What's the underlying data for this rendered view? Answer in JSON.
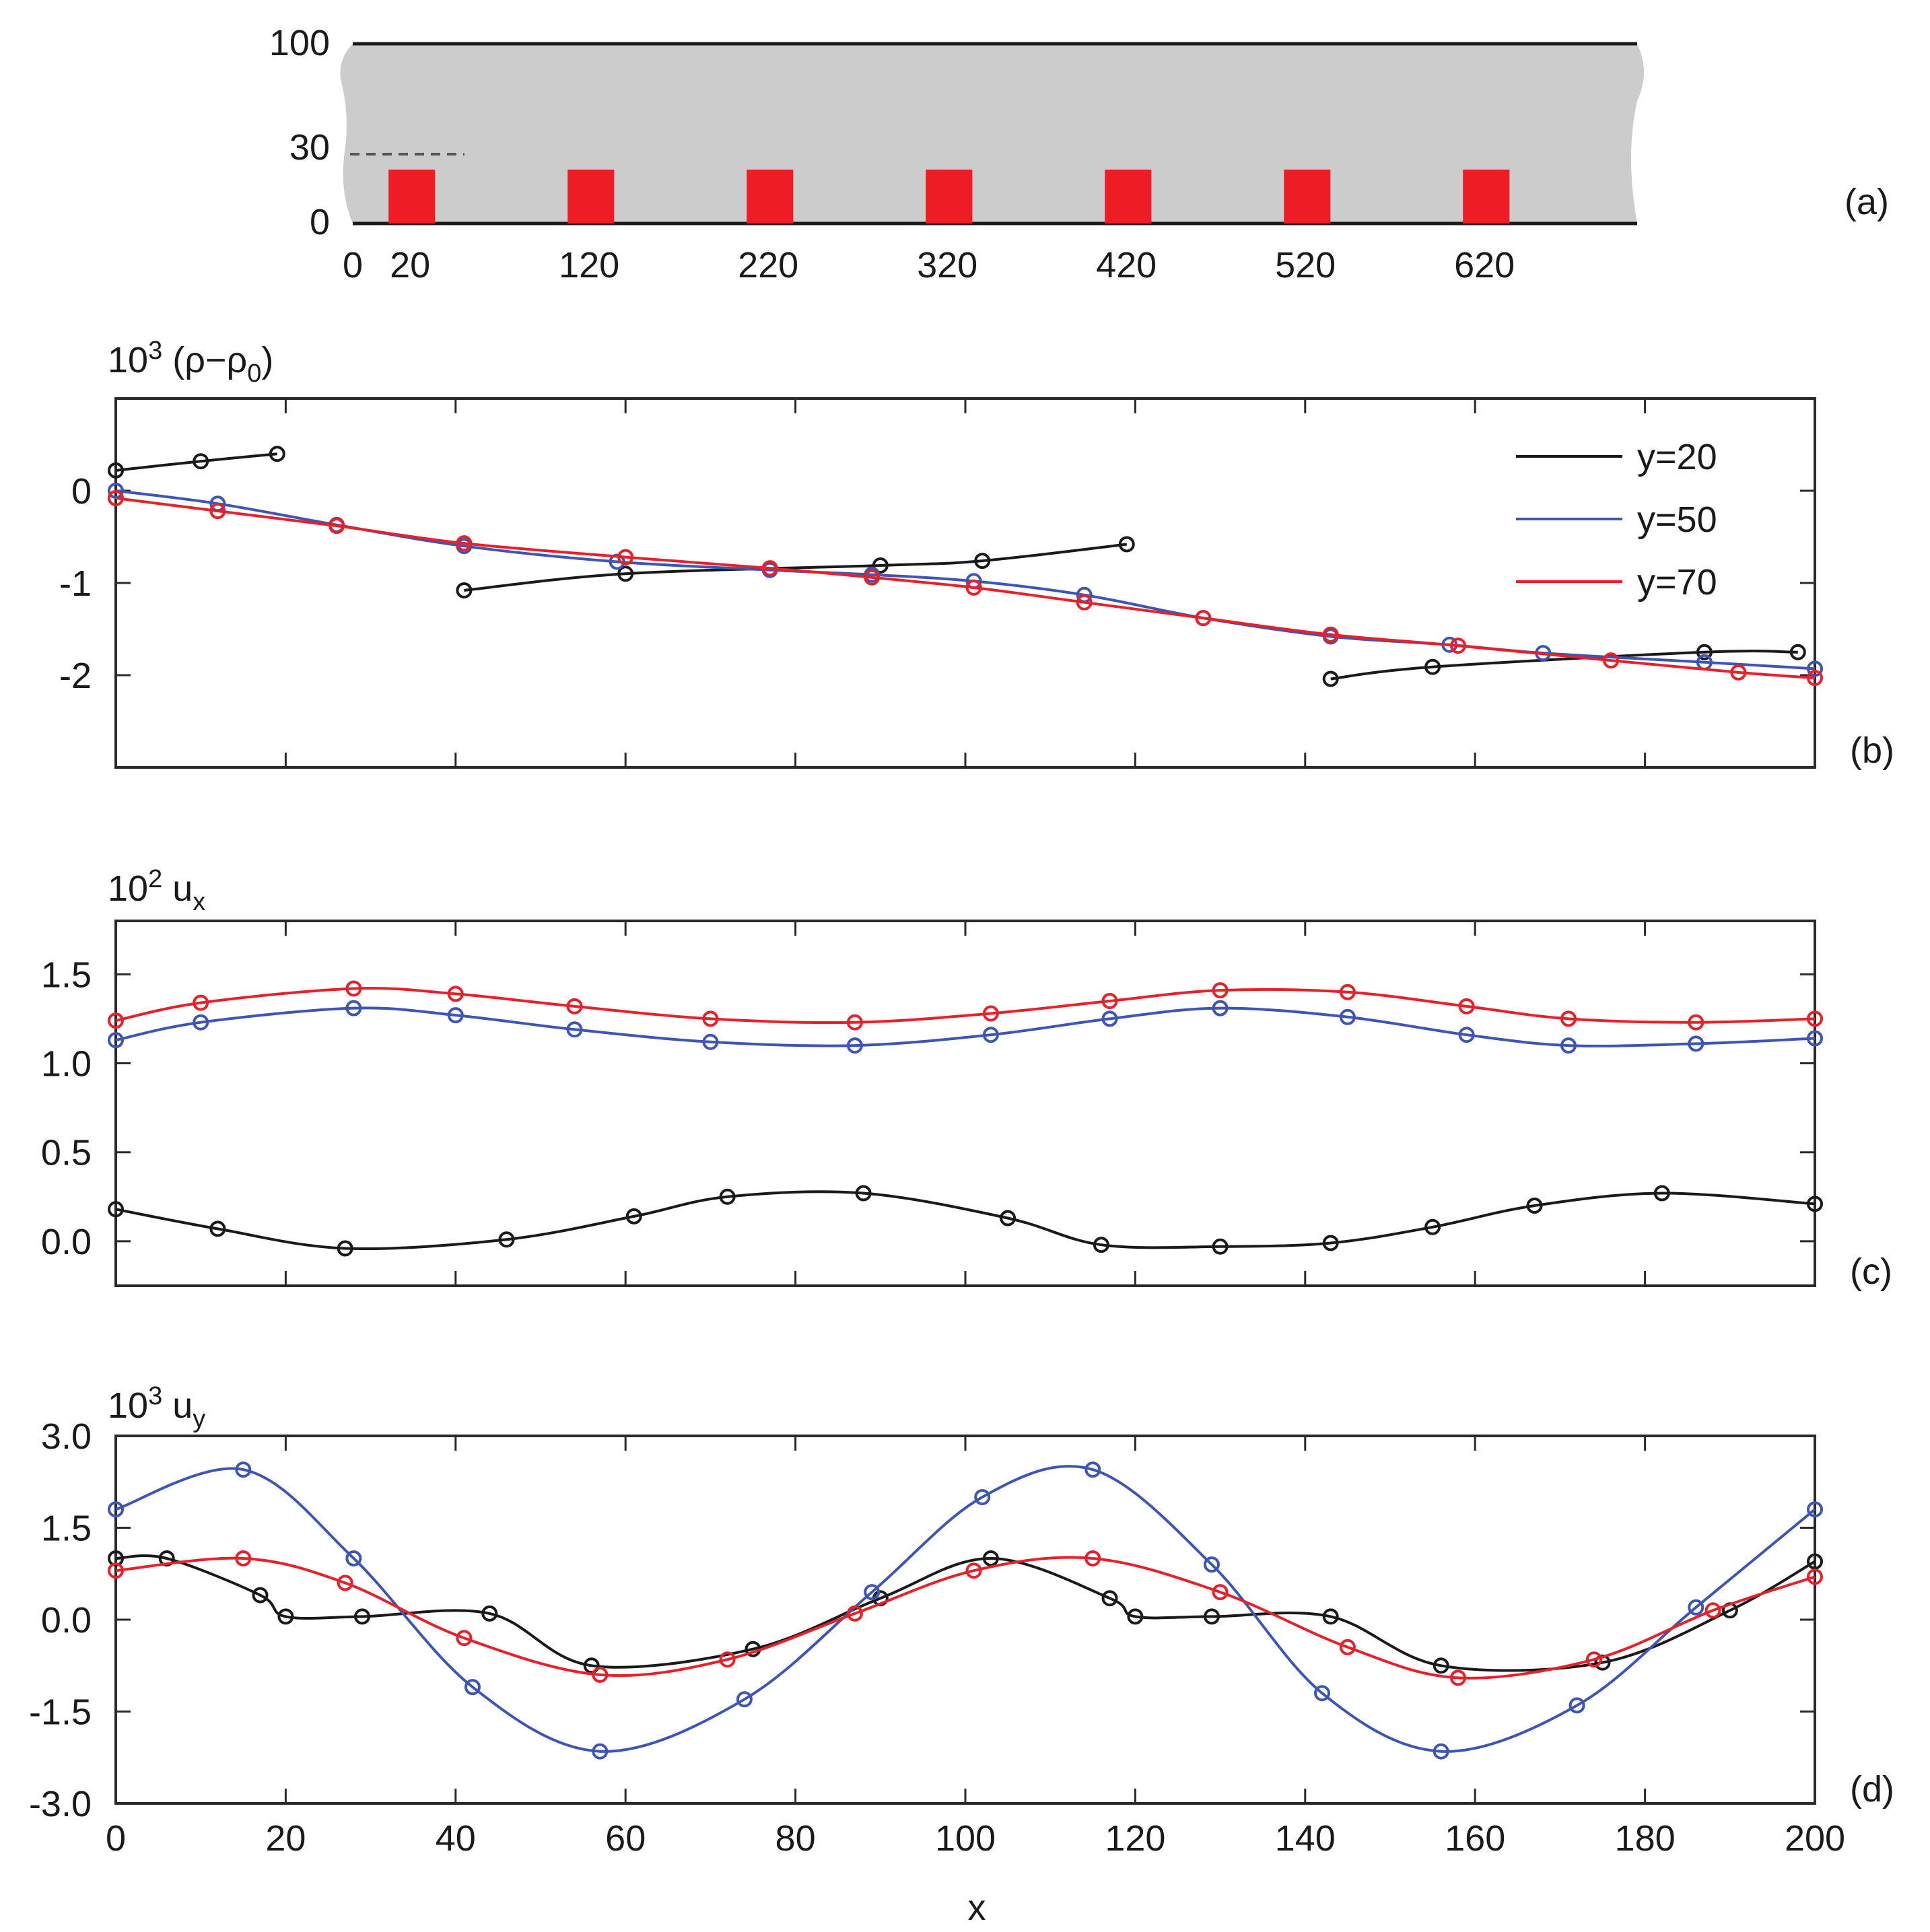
{
  "colors": {
    "black": "#1a1a1a",
    "blue": "#3d55b5",
    "red": "#e8202a",
    "channel_gray": "#cccccc",
    "block_red": "#ee1c25"
  },
  "chart_data": [
    {
      "panel": "(a)",
      "type": "schematic",
      "yticks": [
        "100",
        "30",
        "0"
      ],
      "xticks": [
        "0",
        "20",
        "120",
        "220",
        "320",
        "420",
        "520",
        "620"
      ],
      "channel": {
        "y_bottom": 0,
        "y_top": 100,
        "x_start": 0,
        "x_end": 720
      },
      "obstacles": {
        "height": 30,
        "width": 26,
        "x_starts": [
          20,
          120,
          220,
          320,
          420,
          520,
          620
        ]
      }
    },
    {
      "panel": "(b)",
      "type": "line",
      "ylabel_base": "10",
      "ylabel_exp": "3",
      "ylabel_rest": " (ρ−ρ",
      "ylabel_sub": "0",
      "ylabel_close": ")",
      "xlim": [
        0,
        200
      ],
      "ylim": [
        -3.0,
        1.0
      ],
      "yticks": [
        0,
        -1,
        -2
      ],
      "ytick_labels": [
        "0",
        "-1",
        "-2"
      ],
      "legend": [
        "y=20",
        "y=50",
        "y=70"
      ],
      "series": [
        {
          "name": "y=20 (segment 1)",
          "color": "black",
          "x": [
            0,
            10,
            19
          ],
          "y": [
            0.22,
            0.32,
            0.4
          ]
        },
        {
          "name": "y=20 (segment 2)",
          "color": "black",
          "x": [
            41,
            60,
            90,
            102,
            119
          ],
          "y": [
            -1.08,
            -0.9,
            -0.81,
            -0.76,
            -0.58
          ]
        },
        {
          "name": "y=20 (segment 3)",
          "color": "black",
          "x": [
            143,
            155,
            187,
            198
          ],
          "y": [
            -2.04,
            -1.91,
            -1.75,
            -1.75
          ]
        },
        {
          "name": "y=50",
          "color": "blue",
          "x": [
            0,
            12,
            26,
            41,
            59,
            77,
            89,
            101,
            114,
            128,
            143,
            157,
            168,
            187,
            200
          ],
          "y": [
            0.0,
            -0.14,
            -0.37,
            -0.6,
            -0.77,
            -0.86,
            -0.91,
            -0.98,
            -1.13,
            -1.38,
            -1.58,
            -1.67,
            -1.76,
            -1.86,
            -1.93
          ]
        },
        {
          "name": "y=70",
          "color": "red",
          "x": [
            0,
            12,
            26,
            41,
            60,
            77,
            89,
            101,
            114,
            128,
            143,
            158,
            176,
            191,
            200
          ],
          "y": [
            -0.08,
            -0.22,
            -0.38,
            -0.57,
            -0.72,
            -0.84,
            -0.94,
            -1.05,
            -1.21,
            -1.38,
            -1.56,
            -1.68,
            -1.84,
            -1.97,
            -2.03
          ]
        }
      ]
    },
    {
      "panel": "(c)",
      "type": "line",
      "ylabel_base": "10",
      "ylabel_exp": "2",
      "ylabel_rest": " u",
      "ylabel_sub": "x",
      "ylabel_close": "",
      "xlim": [
        0,
        200
      ],
      "ylim": [
        -0.25,
        1.8
      ],
      "yticks": [
        1.5,
        1.0,
        0.5,
        0.0
      ],
      "ytick_labels": [
        "1.5",
        "1.0",
        "0.5",
        "0.0"
      ],
      "series": [
        {
          "name": "y=20",
          "color": "black",
          "x": [
            0,
            12,
            27,
            46,
            61,
            72,
            88,
            105,
            116,
            130,
            143,
            155,
            167,
            182,
            200
          ],
          "y": [
            0.18,
            0.07,
            -0.04,
            0.01,
            0.14,
            0.25,
            0.27,
            0.13,
            -0.02,
            -0.03,
            -0.01,
            0.08,
            0.2,
            0.27,
            0.21
          ]
        },
        {
          "name": "y=50",
          "color": "blue",
          "x": [
            0,
            10,
            28,
            40,
            54,
            70,
            87,
            103,
            117,
            130,
            145,
            159,
            171,
            186,
            200
          ],
          "y": [
            1.13,
            1.23,
            1.31,
            1.27,
            1.19,
            1.12,
            1.1,
            1.16,
            1.25,
            1.31,
            1.26,
            1.16,
            1.1,
            1.11,
            1.14
          ]
        },
        {
          "name": "y=70",
          "color": "red",
          "x": [
            0,
            10,
            28,
            40,
            54,
            70,
            87,
            103,
            117,
            130,
            145,
            159,
            171,
            186,
            200
          ],
          "y": [
            1.24,
            1.34,
            1.42,
            1.39,
            1.32,
            1.25,
            1.23,
            1.28,
            1.35,
            1.41,
            1.4,
            1.32,
            1.25,
            1.23,
            1.25
          ]
        }
      ]
    },
    {
      "panel": "(d)",
      "type": "line",
      "ylabel_base": "10",
      "ylabel_exp": "3",
      "ylabel_rest": " u",
      "ylabel_sub": "y",
      "ylabel_close": "",
      "xlabel": "x",
      "xlim": [
        0,
        200
      ],
      "ylim": [
        -3.0,
        3.0
      ],
      "xticks": [
        0,
        20,
        40,
        60,
        80,
        100,
        120,
        140,
        160,
        180,
        200
      ],
      "yticks": [
        3.0,
        1.5,
        0.0,
        -1.5,
        -3.0
      ],
      "ytick_labels": [
        "3.0",
        "1.5",
        "0.0",
        "-1.5",
        "-3.0"
      ],
      "series": [
        {
          "name": "y=20",
          "color": "black",
          "x": [
            0,
            6,
            17,
            20,
            29,
            44,
            56,
            75,
            90,
            103,
            117,
            120,
            129,
            143,
            156,
            175,
            190,
            200
          ],
          "y": [
            1.0,
            1.0,
            0.4,
            0.05,
            0.05,
            0.1,
            -0.75,
            -0.48,
            0.35,
            1.0,
            0.35,
            0.05,
            0.05,
            0.05,
            -0.75,
            -0.7,
            0.15,
            0.95
          ]
        },
        {
          "name": "y=50",
          "color": "blue",
          "x": [
            0,
            15,
            28,
            42,
            57,
            74,
            89,
            102,
            115,
            129,
            142,
            156,
            172,
            186,
            200
          ],
          "y": [
            1.8,
            2.45,
            1.0,
            -1.1,
            -2.15,
            -1.3,
            0.45,
            2.0,
            2.45,
            0.9,
            -1.2,
            -2.15,
            -1.4,
            0.2,
            1.8
          ]
        },
        {
          "name": "y=70",
          "color": "red",
          "x": [
            0,
            15,
            27,
            41,
            57,
            72,
            87,
            101,
            115,
            130,
            145,
            158,
            174,
            188,
            200
          ],
          "y": [
            0.8,
            1.0,
            0.6,
            -0.3,
            -0.9,
            -0.65,
            0.1,
            0.8,
            1.0,
            0.45,
            -0.45,
            -0.95,
            -0.65,
            0.15,
            0.7
          ]
        }
      ]
    }
  ]
}
